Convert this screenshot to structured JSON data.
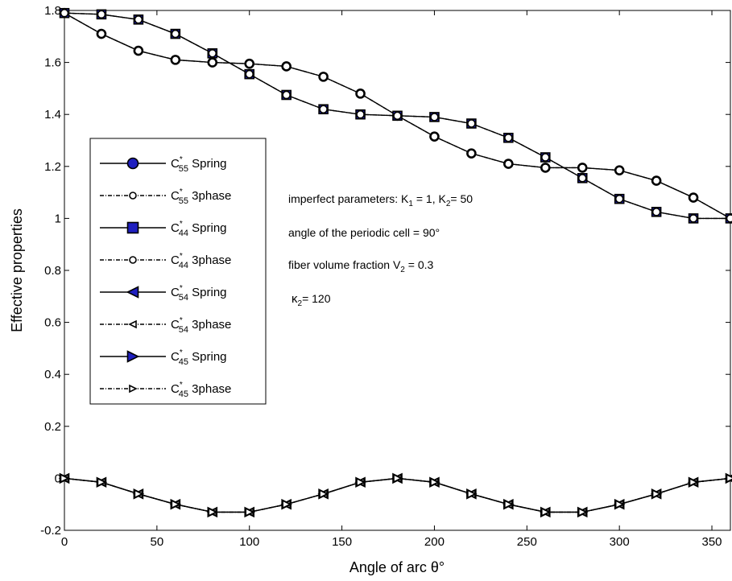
{
  "chart_data": {
    "type": "line",
    "xlabel": "Angle of arc θ°",
    "ylabel": "Effective properties",
    "xlim": [
      0,
      360
    ],
    "ylim": [
      -0.2,
      1.8
    ],
    "xticks": [
      "0",
      "50",
      "100",
      "150",
      "200",
      "250",
      "300",
      "350"
    ],
    "yticks": [
      "-0.2",
      "0",
      "0.2",
      "0.4",
      "0.6",
      "0.8",
      "1",
      "1.2",
      "1.4",
      "1.6",
      "1.8"
    ],
    "grid": false,
    "legend_position": "left",
    "x": [
      0,
      20,
      40,
      60,
      80,
      100,
      120,
      140,
      160,
      180,
      200,
      220,
      240,
      260,
      280,
      300,
      320,
      340,
      360
    ],
    "series": [
      {
        "name_main": "C",
        "name_sup": "*",
        "name_sub": "55",
        "name_rest": " Spring",
        "marker": "circle",
        "fill": "#1f1fbf",
        "dashed": false,
        "values": [
          1.79,
          1.71,
          1.645,
          1.61,
          1.6,
          1.595,
          1.585,
          1.545,
          1.48,
          1.395,
          1.315,
          1.25,
          1.21,
          1.195,
          1.195,
          1.185,
          1.145,
          1.08,
          1.0
        ]
      },
      {
        "name_main": "C",
        "name_sup": "*",
        "name_sub": "55",
        "name_rest": " 3phase",
        "marker": "circle",
        "fill": "#ffffff",
        "dashed": true,
        "values": [
          1.79,
          1.71,
          1.645,
          1.61,
          1.6,
          1.595,
          1.585,
          1.545,
          1.48,
          1.395,
          1.315,
          1.25,
          1.21,
          1.195,
          1.195,
          1.185,
          1.145,
          1.08,
          1.0
        ]
      },
      {
        "name_main": "C",
        "name_sup": "*",
        "name_sub": "44",
        "name_rest": " Spring",
        "marker": "square",
        "fill": "#1f1fbf",
        "dashed": false,
        "values": [
          1.79,
          1.785,
          1.765,
          1.71,
          1.635,
          1.555,
          1.475,
          1.42,
          1.4,
          1.395,
          1.39,
          1.365,
          1.31,
          1.235,
          1.155,
          1.075,
          1.025,
          1.0,
          1.0
        ]
      },
      {
        "name_main": "C",
        "name_sup": "*",
        "name_sub": "44",
        "name_rest": " 3phase",
        "marker": "circle",
        "fill": "#ffffff",
        "dashed": true,
        "values": [
          1.79,
          1.785,
          1.765,
          1.71,
          1.635,
          1.555,
          1.475,
          1.42,
          1.4,
          1.395,
          1.39,
          1.365,
          1.31,
          1.235,
          1.155,
          1.075,
          1.025,
          1.0,
          1.0
        ]
      },
      {
        "name_main": "C",
        "name_sup": "*",
        "name_sub": "54",
        "name_rest": " Spring",
        "marker": "triangle-left",
        "fill": "#1f1fbf",
        "dashed": false,
        "values": [
          0.0,
          -0.015,
          -0.06,
          -0.1,
          -0.13,
          -0.13,
          -0.1,
          -0.06,
          -0.015,
          0.0,
          -0.015,
          -0.06,
          -0.1,
          -0.13,
          -0.13,
          -0.1,
          -0.06,
          -0.015,
          0.0
        ]
      },
      {
        "name_main": "C",
        "name_sup": "*",
        "name_sub": "54",
        "name_rest": " 3phase",
        "marker": "triangle-left",
        "fill": "#ffffff",
        "dashed": true,
        "values": [
          0.0,
          -0.015,
          -0.06,
          -0.1,
          -0.13,
          -0.13,
          -0.1,
          -0.06,
          -0.015,
          0.0,
          -0.015,
          -0.06,
          -0.1,
          -0.13,
          -0.13,
          -0.1,
          -0.06,
          -0.015,
          0.0
        ]
      },
      {
        "name_main": "C",
        "name_sup": "*",
        "name_sub": "45",
        "name_rest": " Spring",
        "marker": "triangle-right",
        "fill": "#1f1fbf",
        "dashed": false,
        "values": [
          0.0,
          -0.015,
          -0.06,
          -0.1,
          -0.13,
          -0.13,
          -0.1,
          -0.06,
          -0.015,
          0.0,
          -0.015,
          -0.06,
          -0.1,
          -0.13,
          -0.13,
          -0.1,
          -0.06,
          -0.015,
          0.0
        ]
      },
      {
        "name_main": "C",
        "name_sup": "*",
        "name_sub": "45",
        "name_rest": " 3phase",
        "marker": "triangle-right",
        "fill": "#ffffff",
        "dashed": true,
        "values": [
          0.0,
          -0.015,
          -0.06,
          -0.1,
          -0.13,
          -0.13,
          -0.1,
          -0.06,
          -0.015,
          0.0,
          -0.015,
          -0.06,
          -0.1,
          -0.13,
          -0.13,
          -0.1,
          -0.06,
          -0.015,
          0.0
        ]
      }
    ],
    "annotations": {
      "line1": {
        "prefix": "imperfect parameters: K",
        "sub1": "1",
        "mid": " = 1, K",
        "sub2": "2",
        "suffix": "= 50"
      },
      "line2": {
        "text": "angle of the periodic cell = 90°"
      },
      "line3": {
        "text": "fiber volume fraction V",
        "sub": "2",
        "suffix": " = 0.3"
      },
      "line4": {
        "prefix": "κ",
        "sub": "2",
        "suffix": "= 120"
      }
    }
  }
}
